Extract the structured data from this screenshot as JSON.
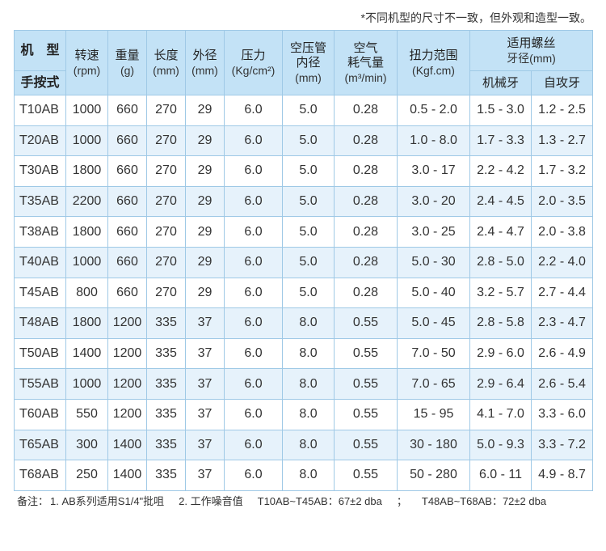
{
  "note": "*不同机型的尺寸不一致，但外观和造型一致。",
  "header": {
    "model": "机　型",
    "type": "手按式",
    "speed": "转速",
    "speed_unit": "(rpm)",
    "weight": "重量",
    "weight_unit": "(g)",
    "length": "长度",
    "length_unit": "(mm)",
    "diameter": "外径",
    "diameter_unit": "(mm)",
    "pressure": "压力",
    "pressure_unit": "(Kg/cm²)",
    "hose": "空压管",
    "hose2": "内径",
    "hose_unit": "(mm)",
    "air": "空气",
    "air2": "耗气量",
    "air_unit": "(m³/min)",
    "torque": "扭力范围",
    "torque_unit": "(Kgf.cm)",
    "screw": "适用螺丝",
    "screw2": "牙径(mm)",
    "machine_thread": "机械牙",
    "self_tap": "自攻牙"
  },
  "rows": [
    {
      "model": "T10AB",
      "speed": "1000",
      "weight": "660",
      "length": "270",
      "dia": "29",
      "pressure": "6.0",
      "hose": "5.0",
      "air": "0.28",
      "torque": "0.5 - 2.0",
      "machine": "1.5 - 3.0",
      "self": "1.2 - 2.5"
    },
    {
      "model": "T20AB",
      "speed": "1000",
      "weight": "660",
      "length": "270",
      "dia": "29",
      "pressure": "6.0",
      "hose": "5.0",
      "air": "0.28",
      "torque": "1.0 - 8.0",
      "machine": "1.7 - 3.3",
      "self": "1.3 - 2.7"
    },
    {
      "model": "T30AB",
      "speed": "1800",
      "weight": "660",
      "length": "270",
      "dia": "29",
      "pressure": "6.0",
      "hose": "5.0",
      "air": "0.28",
      "torque": "3.0 - 17",
      "machine": "2.2 - 4.2",
      "self": "1.7 - 3.2"
    },
    {
      "model": "T35AB",
      "speed": "2200",
      "weight": "660",
      "length": "270",
      "dia": "29",
      "pressure": "6.0",
      "hose": "5.0",
      "air": "0.28",
      "torque": "3.0 - 20",
      "machine": "2.4 - 4.5",
      "self": "2.0 - 3.5"
    },
    {
      "model": "T38AB",
      "speed": "1800",
      "weight": "660",
      "length": "270",
      "dia": "29",
      "pressure": "6.0",
      "hose": "5.0",
      "air": "0.28",
      "torque": "3.0 - 25",
      "machine": "2.4 - 4.7",
      "self": "2.0 - 3.8"
    },
    {
      "model": "T40AB",
      "speed": "1000",
      "weight": "660",
      "length": "270",
      "dia": "29",
      "pressure": "6.0",
      "hose": "5.0",
      "air": "0.28",
      "torque": "5.0 - 30",
      "machine": "2.8 - 5.0",
      "self": "2.2 - 4.0"
    },
    {
      "model": "T45AB",
      "speed": "800",
      "weight": "660",
      "length": "270",
      "dia": "29",
      "pressure": "6.0",
      "hose": "5.0",
      "air": "0.28",
      "torque": "5.0 - 40",
      "machine": "3.2 - 5.7",
      "self": "2.7 - 4.4"
    },
    {
      "model": "T48AB",
      "speed": "1800",
      "weight": "1200",
      "length": "335",
      "dia": "37",
      "pressure": "6.0",
      "hose": "8.0",
      "air": "0.55",
      "torque": "5.0 - 45",
      "machine": "2.8 - 5.8",
      "self": "2.3 - 4.7"
    },
    {
      "model": "T50AB",
      "speed": "1400",
      "weight": "1200",
      "length": "335",
      "dia": "37",
      "pressure": "6.0",
      "hose": "8.0",
      "air": "0.55",
      "torque": "7.0 - 50",
      "machine": "2.9 - 6.0",
      "self": "2.6 - 4.9"
    },
    {
      "model": "T55AB",
      "speed": "1000",
      "weight": "1200",
      "length": "335",
      "dia": "37",
      "pressure": "6.0",
      "hose": "8.0",
      "air": "0.55",
      "torque": "7.0 - 65",
      "machine": "2.9 - 6.4",
      "self": "2.6 - 5.4"
    },
    {
      "model": "T60AB",
      "speed": "550",
      "weight": "1200",
      "length": "335",
      "dia": "37",
      "pressure": "6.0",
      "hose": "8.0",
      "air": "0.55",
      "torque": "15 - 95",
      "machine": "4.1 - 7.0",
      "self": "3.3 - 6.0"
    },
    {
      "model": "T65AB",
      "speed": "300",
      "weight": "1400",
      "length": "335",
      "dia": "37",
      "pressure": "6.0",
      "hose": "8.0",
      "air": "0.55",
      "torque": "30 - 180",
      "machine": "5.0 - 9.3",
      "self": "3.3 - 7.2"
    },
    {
      "model": "T68AB",
      "speed": "250",
      "weight": "1400",
      "length": "335",
      "dia": "37",
      "pressure": "6.0",
      "hose": "8.0",
      "air": "0.55",
      "torque": "50 - 280",
      "machine": "6.0 - 11",
      "self": "4.9 - 8.7"
    }
  ],
  "footnote": {
    "label": "备注：",
    "item1": "1. AB系列适用S1/4\"批咀",
    "item2": "2. 工作噪音值",
    "item3": "T10AB~T45AB：67±2 dba",
    "sep": "；",
    "item4": "T48AB~T68AB：72±2 dba"
  },
  "colors": {
    "header_bg": "#c3e2f6",
    "alt_row_bg": "#e6f2fb",
    "border": "#9fc9e6"
  }
}
